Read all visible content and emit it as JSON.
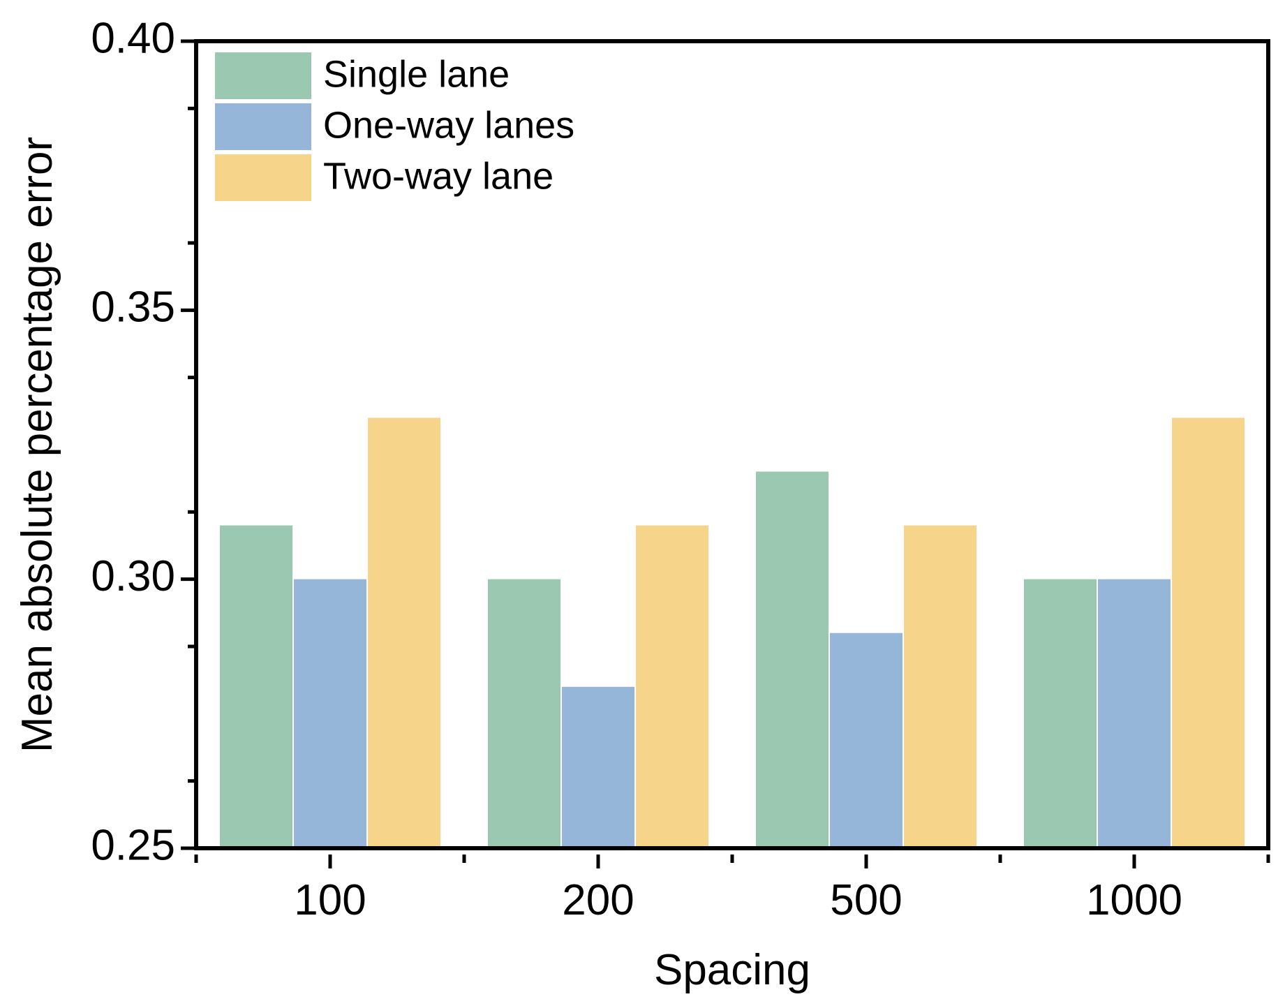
{
  "chart_data": {
    "type": "bar",
    "title": "",
    "xlabel": "Spacing",
    "ylabel": "Mean absolute percentage error",
    "categories": [
      "100",
      "200",
      "500",
      "1000"
    ],
    "ylim": [
      0.25,
      0.4
    ],
    "yticks": [
      "0.25",
      "0.30",
      "0.35",
      "0.40"
    ],
    "yminor_step": 0.025,
    "legend_position": "top-left",
    "grid": false,
    "series": [
      {
        "name": "Single lane",
        "color": "#9ac8b0",
        "values": [
          0.31,
          0.3,
          0.32,
          0.3
        ]
      },
      {
        "name": "One-way lanes",
        "color": "#95b5d9",
        "values": [
          0.3,
          0.28,
          0.29,
          0.3
        ]
      },
      {
        "name": "Two-way lane",
        "color": "#f6d48a",
        "values": [
          0.33,
          0.31,
          0.31,
          0.33
        ]
      }
    ]
  }
}
